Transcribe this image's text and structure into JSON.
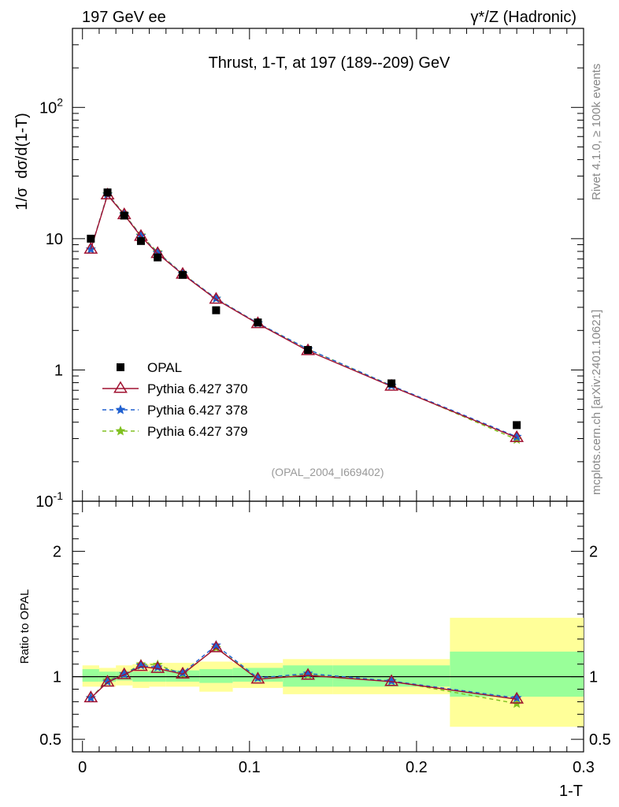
{
  "header": {
    "left_label": "197 GeV ee",
    "right_label": "γ*/Z (Hadronic)"
  },
  "side_labels": {
    "rivet": "Rivet 4.1.0, ≥ 100k events",
    "mcplots": "mcplots.cern.ch [arXiv:2401.10621]"
  },
  "chart_data": {
    "type": "line",
    "title": "Thrust, 1-T, at 197 (189--209) GeV",
    "xlabel": "1-T",
    "ylabel": "1/σ  dσ/d(1-T)",
    "ratio_ylabel": "Ratio to OPAL",
    "analysis_id": "(OPAL_2004_I669402)",
    "xlim": [
      -0.006,
      0.3
    ],
    "ylim": [
      0.1,
      400
    ],
    "yscale": "log",
    "ratio_ylim": [
      0.4,
      2.4
    ],
    "x_ticks": [
      "0",
      "0.1",
      "0.2",
      "0.3"
    ],
    "y_ticks": [
      "10^-1",
      "1",
      "10",
      "10^2"
    ],
    "ratio_y_ticks": [
      "0.5",
      "1",
      "2"
    ],
    "x": [
      0.005,
      0.015,
      0.025,
      0.035,
      0.045,
      0.06,
      0.08,
      0.105,
      0.135,
      0.185,
      0.26
    ],
    "bins": [
      [
        0,
        0.01
      ],
      [
        0.01,
        0.02
      ],
      [
        0.02,
        0.03
      ],
      [
        0.03,
        0.04
      ],
      [
        0.04,
        0.05
      ],
      [
        0.05,
        0.07
      ],
      [
        0.07,
        0.09
      ],
      [
        0.09,
        0.12
      ],
      [
        0.12,
        0.15
      ],
      [
        0.15,
        0.22
      ],
      [
        0.22,
        0.3
      ]
    ],
    "series": [
      {
        "name": "OPAL",
        "color": "#000000",
        "marker": "square",
        "values": [
          10.0,
          22.5,
          15.0,
          9.6,
          7.2,
          5.3,
          2.85,
          2.3,
          1.42,
          0.79,
          0.38
        ]
      },
      {
        "name": "Pythia 6.427 370",
        "color": "#a01030",
        "marker": "triangle",
        "line": "solid",
        "values": [
          8.3,
          21.5,
          15.2,
          10.4,
          7.7,
          5.35,
          3.45,
          2.25,
          1.4,
          0.75,
          0.305
        ],
        "ratio": [
          0.83,
          0.955,
          1.015,
          1.08,
          1.065,
          1.02,
          1.23,
          0.98,
          1.01,
          0.96,
          0.82
        ]
      },
      {
        "name": "Pythia 6.427 378",
        "color": "#2060d0",
        "marker": "star",
        "line": "dashed",
        "values": [
          8.3,
          21.7,
          15.3,
          10.5,
          7.8,
          5.4,
          3.5,
          2.27,
          1.44,
          0.76,
          0.31
        ],
        "ratio": [
          0.83,
          0.96,
          1.02,
          1.09,
          1.075,
          1.03,
          1.25,
          0.99,
          1.025,
          0.965,
          0.83
        ]
      },
      {
        "name": "Pythia 6.427 379",
        "color": "#80c020",
        "marker": "star",
        "line": "dashed",
        "values": [
          8.3,
          21.9,
          15.4,
          10.6,
          7.9,
          5.4,
          3.5,
          2.27,
          1.44,
          0.76,
          0.295
        ],
        "ratio": [
          0.83,
          0.97,
          1.02,
          1.1,
          1.095,
          1.02,
          1.23,
          0.99,
          1.015,
          0.965,
          0.785
        ]
      }
    ],
    "ratio_bands": {
      "inner": [
        [
          0.96,
          1.06
        ],
        [
          0.96,
          1.04
        ],
        [
          0.97,
          1.04
        ],
        [
          0.96,
          1.04
        ],
        [
          0.96,
          1.05
        ],
        [
          0.96,
          1.05
        ],
        [
          0.95,
          1.06
        ],
        [
          0.96,
          1.07
        ],
        [
          0.92,
          1.09
        ],
        [
          0.92,
          1.09
        ],
        [
          0.84,
          1.2
        ]
      ],
      "outer": [
        [
          0.92,
          1.09
        ],
        [
          0.92,
          1.07
        ],
        [
          0.93,
          1.09
        ],
        [
          0.91,
          1.1
        ],
        [
          0.92,
          1.11
        ],
        [
          0.92,
          1.11
        ],
        [
          0.88,
          1.12
        ],
        [
          0.91,
          1.11
        ],
        [
          0.86,
          1.14
        ],
        [
          0.86,
          1.14
        ],
        [
          0.6,
          1.47
        ]
      ]
    },
    "legend_position": "middle-left"
  }
}
